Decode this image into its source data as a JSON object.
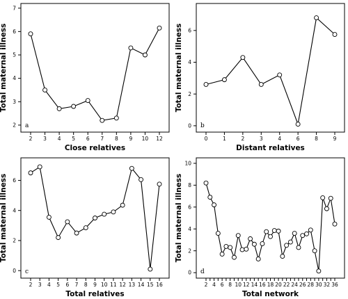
{
  "chart_data": [
    {
      "type": "line",
      "panel_label": "a",
      "xlabel": "Close relatives",
      "ylabel": "Total maternal illness",
      "categories": [
        "2",
        "3",
        "4",
        "5",
        "6",
        "7",
        "8",
        "9",
        "10",
        "12"
      ],
      "values": [
        5.9,
        3.5,
        2.7,
        2.8,
        3.05,
        2.2,
        2.3,
        5.3,
        5.0,
        6.15
      ],
      "y_ticks": [
        2,
        3,
        4,
        5,
        6,
        7
      ],
      "ylim": [
        1.7,
        7.2
      ]
    },
    {
      "type": "line",
      "panel_label": "b",
      "xlabel": "Distant relatives",
      "ylabel": "Total maternal illness",
      "categories": [
        "0",
        "1",
        "2",
        "3",
        "4",
        "6",
        "8",
        "9"
      ],
      "values": [
        2.6,
        2.9,
        4.3,
        2.6,
        3.2,
        0.1,
        6.8,
        5.75
      ],
      "y_ticks": [
        0,
        2,
        4,
        6
      ],
      "ylim": [
        -0.4,
        7.7
      ]
    },
    {
      "type": "line",
      "panel_label": "c",
      "xlabel": "Total relatives",
      "ylabel": "Total maternal illness",
      "categories": [
        "2",
        "3",
        "4",
        "5",
        "6",
        "7",
        "8",
        "9",
        "10",
        "11",
        "12",
        "13",
        "14",
        "15",
        "16"
      ],
      "values": [
        6.5,
        6.9,
        3.55,
        2.2,
        3.25,
        2.5,
        2.85,
        3.5,
        3.75,
        3.9,
        4.35,
        6.8,
        6.05,
        0.1,
        5.75
      ],
      "y_ticks": [
        0,
        2,
        4,
        6
      ],
      "ylim": [
        -0.5,
        7.5
      ]
    },
    {
      "type": "line",
      "panel_label": "d",
      "xlabel": "Total network",
      "ylabel": "Total maternal illness",
      "categories": [
        "2",
        "3",
        "4",
        "5",
        "6",
        "7",
        "8",
        "9",
        "10",
        "11",
        "12",
        "13",
        "14",
        "15",
        "16",
        "17",
        "18",
        "19",
        "20",
        "21",
        "22",
        "23",
        "24",
        "25",
        "26",
        "27",
        "28",
        "29",
        "30",
        "31",
        "32",
        "33",
        "36"
      ],
      "x_tick_labels": [
        "2",
        "4",
        "6",
        "8",
        "10",
        "12",
        "14",
        "16",
        "18",
        "20",
        "22",
        "24",
        "26",
        "28",
        "30",
        "32",
        "36"
      ],
      "values": [
        8.2,
        6.9,
        6.2,
        3.6,
        1.7,
        2.4,
        2.3,
        1.4,
        3.4,
        2.1,
        2.15,
        3.1,
        2.6,
        1.25,
        2.65,
        3.75,
        3.3,
        3.85,
        3.8,
        1.5,
        2.5,
        2.8,
        3.6,
        2.3,
        3.4,
        3.55,
        3.9,
        2.0,
        0.15,
        6.85,
        5.85,
        6.8,
        4.45
      ],
      "y_ticks": [
        0,
        2,
        4,
        6,
        8,
        10
      ],
      "ylim": [
        -0.5,
        10.5
      ]
    }
  ]
}
